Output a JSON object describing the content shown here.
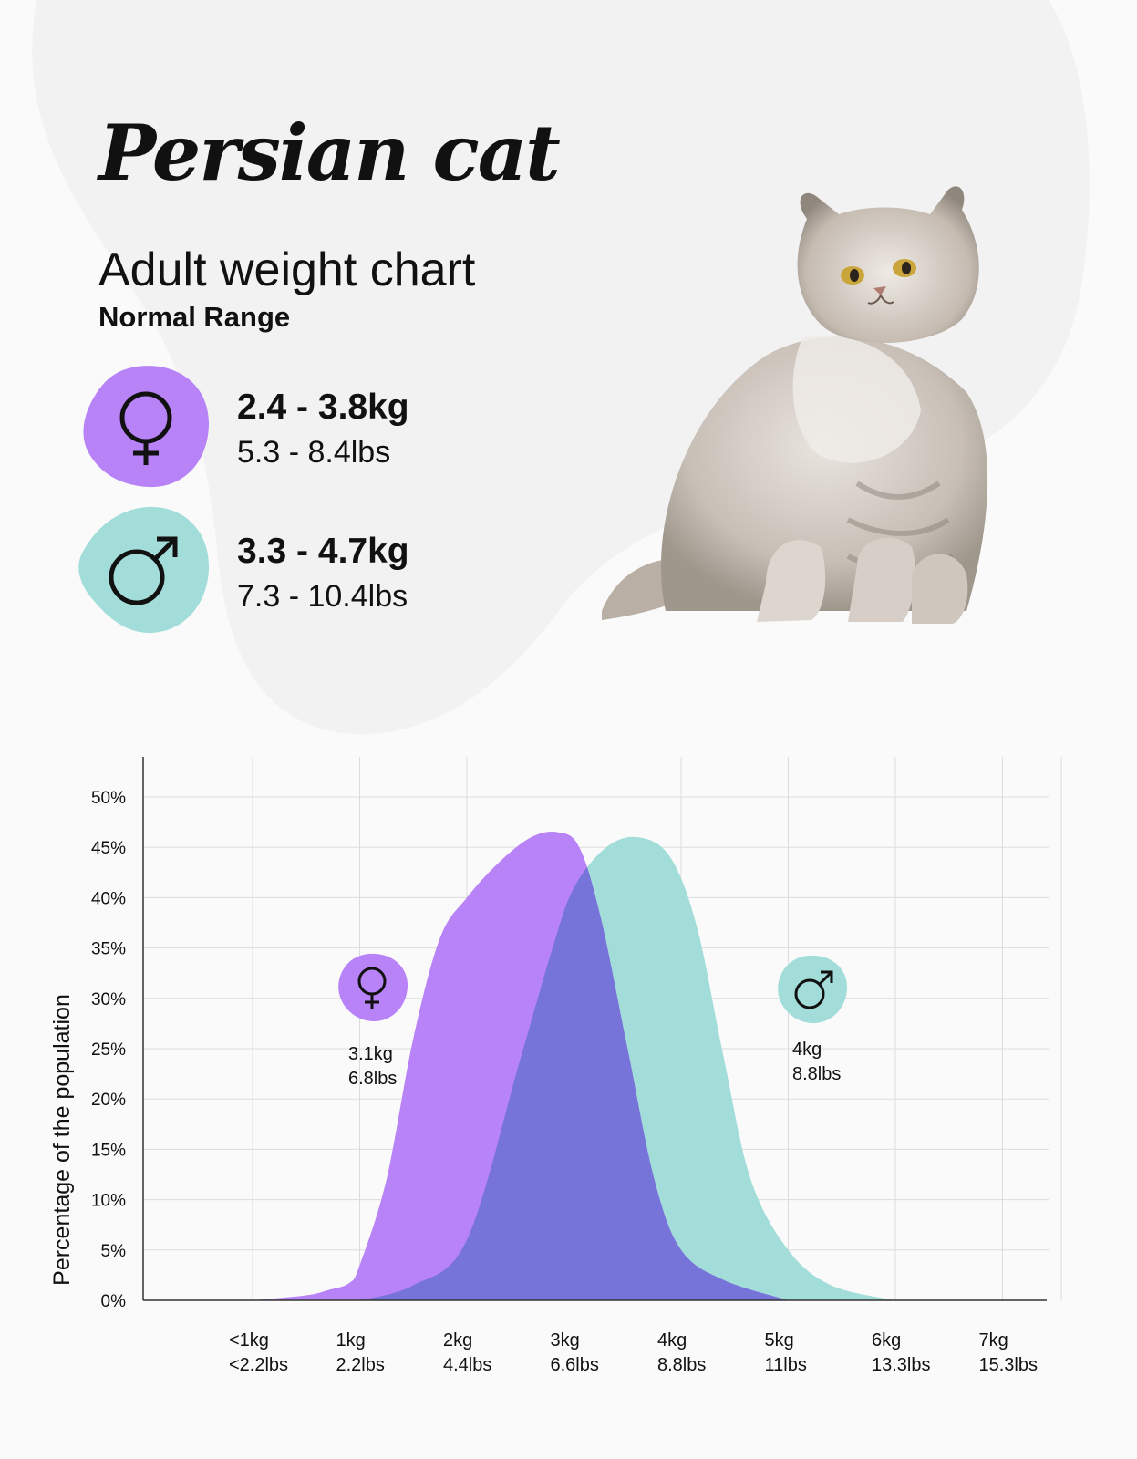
{
  "header": {
    "title": "Persian cat",
    "subtitle": "Adult weight chart",
    "range_label": "Normal Range"
  },
  "ranges": {
    "female": {
      "icon": "female-symbol-icon",
      "kg": "2.4 - 3.8kg",
      "lbs": "5.3 - 8.4lbs",
      "color": "#b983f8"
    },
    "male": {
      "icon": "male-symbol-icon",
      "kg": "3.3 - 4.7kg",
      "lbs": "7.3 - 10.4lbs",
      "color": "#a3ddd9"
    }
  },
  "colors": {
    "female": "#b983f8",
    "male": "#a3ddd9",
    "overlap": "#7673d9",
    "background_blob": "#f2f2f2"
  },
  "chart_data": {
    "type": "area",
    "ylabel": "Percentage of the population",
    "ylim": [
      0,
      50
    ],
    "y_ticks": [
      0,
      5,
      10,
      15,
      20,
      25,
      30,
      35,
      40,
      45,
      50
    ],
    "y_tick_labels": [
      "0%",
      "5%",
      "10%",
      "15%",
      "20%",
      "25%",
      "30%",
      "35%",
      "40%",
      "45%",
      "50%"
    ],
    "x_ticks": [
      0,
      1,
      2,
      3,
      4,
      5,
      6,
      7
    ],
    "x_tick_labels": [
      [
        "<1kg",
        "<2.2lbs"
      ],
      [
        "1kg",
        "2.2lbs"
      ],
      [
        "2kg",
        "4.4lbs"
      ],
      [
        "3kg",
        "6.6lbs"
      ],
      [
        "4kg",
        "8.8lbs"
      ],
      [
        "5kg",
        "11lbs"
      ],
      [
        "6kg",
        "13.3lbs"
      ],
      [
        "7kg",
        "15.3lbs"
      ]
    ],
    "grid": true,
    "series": [
      {
        "id": "female",
        "color": "#b983f8",
        "x": [
          0,
          0.5,
          0.7,
          0.9,
          1.0,
          1.25,
          1.5,
          1.75,
          2.0,
          2.3,
          2.6,
          2.85,
          3.05,
          3.25,
          3.5,
          3.75,
          4.0,
          4.4,
          5.0
        ],
        "y": [
          0,
          0.5,
          1.0,
          1.7,
          3.5,
          12,
          26,
          36,
          40,
          43.5,
          46,
          46.5,
          45,
          38,
          25,
          12,
          5,
          2,
          0
        ]
      },
      {
        "id": "male",
        "color": "#a3ddd9",
        "x": [
          1.0,
          1.5,
          2.0,
          2.5,
          2.8,
          3.0,
          3.3,
          3.6,
          3.9,
          4.15,
          4.4,
          4.65,
          5.0,
          5.4,
          6.0
        ],
        "y": [
          0,
          1.5,
          6,
          24,
          35,
          41,
          45,
          46,
          44,
          37,
          24,
          12,
          5,
          1.5,
          0
        ]
      }
    ],
    "markers": [
      {
        "series": "female",
        "icon": "female-symbol-icon",
        "lines": [
          "3.1kg",
          "6.8lbs"
        ]
      },
      {
        "series": "male",
        "icon": "male-symbol-icon",
        "lines": [
          "4kg",
          "8.8lbs"
        ]
      }
    ]
  }
}
